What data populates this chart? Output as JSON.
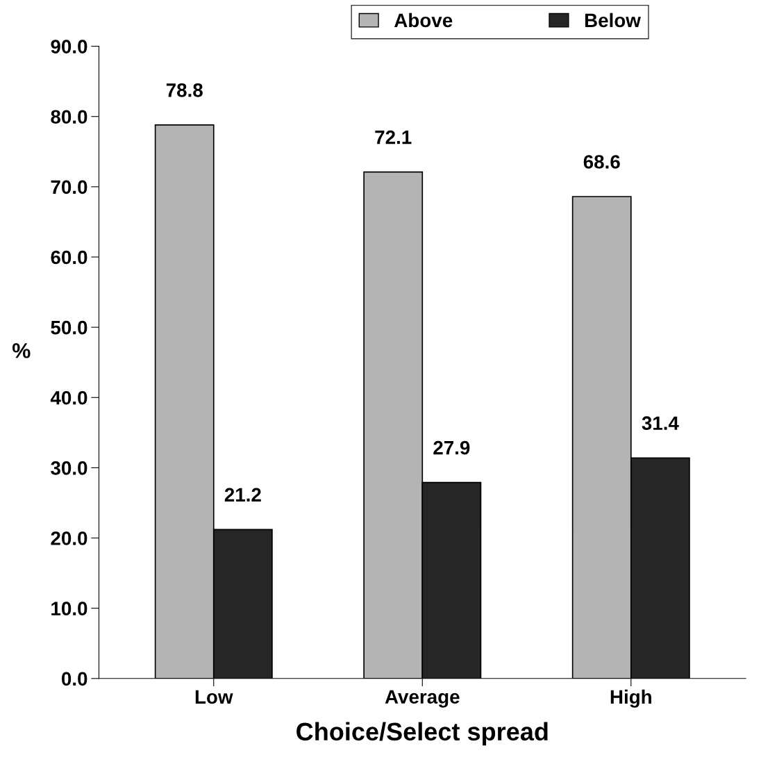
{
  "chart_data": {
    "type": "bar",
    "xlabel": "Choice/Select spread",
    "ylabel": "%",
    "categories": [
      "Low",
      "Average",
      "High"
    ],
    "series": [
      {
        "name": "Above",
        "color": "#b4b4b4",
        "values": [
          78.8,
          72.1,
          68.6
        ]
      },
      {
        "name": "Below",
        "color": "#262626",
        "values": [
          21.2,
          27.9,
          31.4
        ]
      }
    ],
    "ylim": [
      0,
      90
    ],
    "yticks": [
      {
        "value": 0,
        "label": "0.0"
      },
      {
        "value": 10,
        "label": "10.0"
      },
      {
        "value": 20,
        "label": "20.0"
      },
      {
        "value": 30,
        "label": "30.0"
      },
      {
        "value": 40,
        "label": "40.0"
      },
      {
        "value": 50,
        "label": "50.0"
      },
      {
        "value": 60,
        "label": "60.0"
      },
      {
        "value": 70,
        "label": "70.0"
      },
      {
        "value": 80,
        "label": "80.0"
      },
      {
        "value": 90,
        "label": "90.0"
      }
    ],
    "data_labels": true,
    "legend": "top",
    "grid": false
  }
}
